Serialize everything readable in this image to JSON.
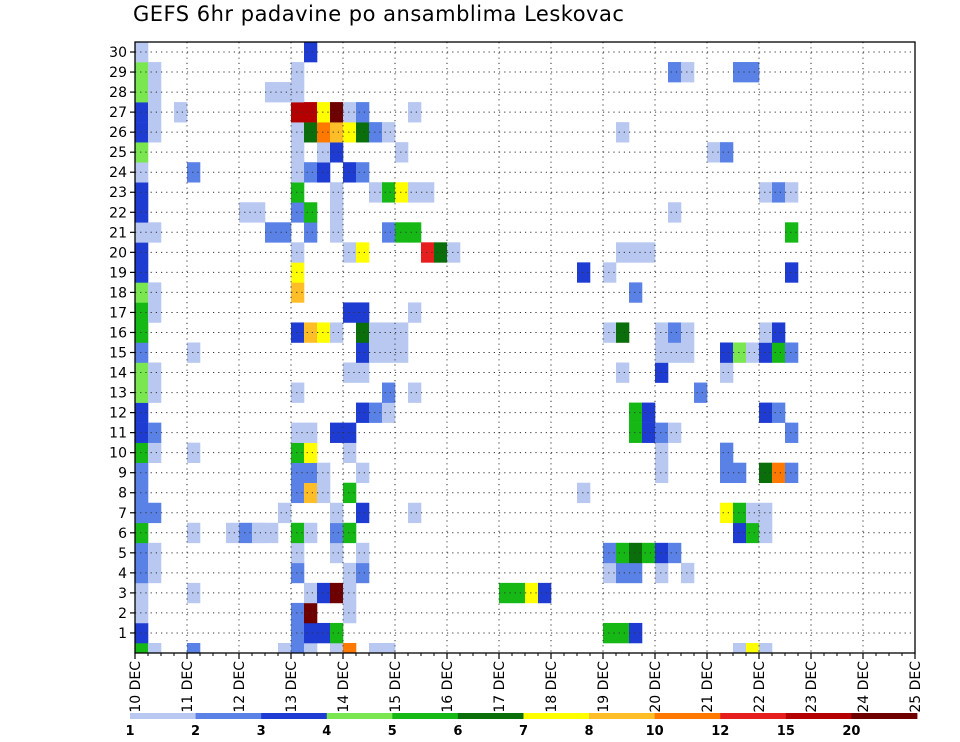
{
  "title": "GEFS 6hr padavine po ansamblima Leskovac",
  "chart_data": {
    "type": "heatmap",
    "title": "GEFS 6hr padavine po ansamblima Leskovac",
    "xlabel": "",
    "ylabel": "",
    "x_ticks": [
      "10 DEC",
      "11 DEC",
      "12 DEC",
      "13 DEC",
      "14 DEC",
      "15 DEC",
      "16 DEC",
      "17 DEC",
      "18 DEC",
      "19 DEC",
      "20 DEC",
      "21 DEC",
      "22 DEC",
      "23 DEC",
      "24 DEC",
      "25 DEC"
    ],
    "y_ticks": [
      "1",
      "2",
      "3",
      "4",
      "5",
      "6",
      "7",
      "8",
      "9",
      "10",
      "11",
      "12",
      "13",
      "14",
      "15",
      "16",
      "17",
      "18",
      "19",
      "20",
      "21",
      "22",
      "23",
      "24",
      "25",
      "26",
      "27",
      "28",
      "29",
      "30"
    ],
    "x_range_days": [
      0,
      15
    ],
    "y_range": [
      0,
      30
    ],
    "step": "6hr",
    "grid": "dotted",
    "colorbar": {
      "boundaries": [
        "1",
        "2",
        "3",
        "4",
        "5",
        "6",
        "7",
        "8",
        "10",
        "12",
        "15",
        "20"
      ],
      "colors": [
        "#b8c8f0",
        "#5a82e6",
        "#1e3cd2",
        "#7ae650",
        "#16b816",
        "#0a6e0a",
        "#ffff00",
        "#ffbe28",
        "#ff7800",
        "#e61e1e",
        "#b40000",
        "#6e0000"
      ]
    },
    "cells": [
      {
        "x": 0,
        "y": 0,
        "v": 5
      },
      {
        "x": 0,
        "y": 1,
        "v": 3
      },
      {
        "x": 0,
        "y": 2,
        "v": 1
      },
      {
        "x": 0,
        "y": 3,
        "v": 1
      },
      {
        "x": 0,
        "y": 4,
        "v": 2
      },
      {
        "x": 0,
        "y": 5,
        "v": 2
      },
      {
        "x": 0,
        "y": 6,
        "v": 5
      },
      {
        "x": 0,
        "y": 7,
        "v": 2
      },
      {
        "x": 0,
        "y": 8,
        "v": 2
      },
      {
        "x": 0,
        "y": 9,
        "v": 2
      },
      {
        "x": 0,
        "y": 10,
        "v": 5
      },
      {
        "x": 0,
        "y": 11,
        "v": 3
      },
      {
        "x": 0,
        "y": 12,
        "v": 3
      },
      {
        "x": 0,
        "y": 13,
        "v": 4
      },
      {
        "x": 0,
        "y": 14,
        "v": 4
      },
      {
        "x": 0,
        "y": 15,
        "v": 2
      },
      {
        "x": 0,
        "y": 16,
        "v": 5
      },
      {
        "x": 0,
        "y": 17,
        "v": 5
      },
      {
        "x": 0,
        "y": 18,
        "v": 4
      },
      {
        "x": 0,
        "y": 19,
        "v": 3
      },
      {
        "x": 0,
        "y": 20,
        "v": 3
      },
      {
        "x": 0,
        "y": 21,
        "v": 1
      },
      {
        "x": 0,
        "y": 22,
        "v": 3
      },
      {
        "x": 0,
        "y": 23,
        "v": 3
      },
      {
        "x": 0,
        "y": 24,
        "v": 1
      },
      {
        "x": 0,
        "y": 25,
        "v": 4
      },
      {
        "x": 0,
        "y": 26,
        "v": 3
      },
      {
        "x": 0,
        "y": 27,
        "v": 3
      },
      {
        "x": 0,
        "y": 28,
        "v": 4
      },
      {
        "x": 0,
        "y": 29,
        "v": 4
      },
      {
        "x": 0,
        "y": 30,
        "v": 1
      },
      {
        "x": 1,
        "y": 0,
        "v": 1
      },
      {
        "x": 1,
        "y": 4,
        "v": 1
      },
      {
        "x": 1,
        "y": 5,
        "v": 1
      },
      {
        "x": 1,
        "y": 7,
        "v": 2
      },
      {
        "x": 1,
        "y": 10,
        "v": 1
      },
      {
        "x": 1,
        "y": 11,
        "v": 2
      },
      {
        "x": 1,
        "y": 13,
        "v": 1
      },
      {
        "x": 1,
        "y": 14,
        "v": 1
      },
      {
        "x": 1,
        "y": 17,
        "v": 1
      },
      {
        "x": 1,
        "y": 18,
        "v": 1
      },
      {
        "x": 1,
        "y": 21,
        "v": 1
      },
      {
        "x": 1,
        "y": 26,
        "v": 1
      },
      {
        "x": 1,
        "y": 27,
        "v": 1
      },
      {
        "x": 1,
        "y": 28,
        "v": 1
      },
      {
        "x": 1,
        "y": 29,
        "v": 1
      },
      {
        "x": 3,
        "y": 27,
        "v": 1
      },
      {
        "x": 4,
        "y": 0,
        "v": 2
      },
      {
        "x": 4,
        "y": 3,
        "v": 1
      },
      {
        "x": 4,
        "y": 6,
        "v": 1
      },
      {
        "x": 4,
        "y": 10,
        "v": 1
      },
      {
        "x": 4,
        "y": 15,
        "v": 1
      },
      {
        "x": 4,
        "y": 24,
        "v": 2
      },
      {
        "x": 7,
        "y": 6,
        "v": 1
      },
      {
        "x": 8,
        "y": 6,
        "v": 2
      },
      {
        "x": 9,
        "y": 6,
        "v": 1
      },
      {
        "x": 8,
        "y": 22,
        "v": 1
      },
      {
        "x": 9,
        "y": 22,
        "v": 1
      },
      {
        "x": 9,
        "y": 6,
        "v": 1
      },
      {
        "x": 10,
        "y": 6,
        "v": 1
      },
      {
        "x": 10,
        "y": 21,
        "v": 2
      },
      {
        "x": 10,
        "y": 28,
        "v": 1
      },
      {
        "x": 11,
        "y": 0,
        "v": 1
      },
      {
        "x": 11,
        "y": 7,
        "v": 1
      },
      {
        "x": 11,
        "y": 21,
        "v": 2
      },
      {
        "x": 11,
        "y": 28,
        "v": 1
      },
      {
        "x": 12,
        "y": 0,
        "v": 2
      },
      {
        "x": 12,
        "y": 1,
        "v": 2
      },
      {
        "x": 12,
        "y": 2,
        "v": 2
      },
      {
        "x": 12,
        "y": 4,
        "v": 2
      },
      {
        "x": 12,
        "y": 5,
        "v": 1
      },
      {
        "x": 12,
        "y": 6,
        "v": 5
      },
      {
        "x": 12,
        "y": 8,
        "v": 2
      },
      {
        "x": 12,
        "y": 9,
        "v": 2
      },
      {
        "x": 12,
        "y": 10,
        "v": 5
      },
      {
        "x": 12,
        "y": 11,
        "v": 1
      },
      {
        "x": 12,
        "y": 13,
        "v": 1
      },
      {
        "x": 12,
        "y": 16,
        "v": 3
      },
      {
        "x": 12,
        "y": 18,
        "v": 8
      },
      {
        "x": 12,
        "y": 19,
        "v": 7
      },
      {
        "x": 12,
        "y": 20,
        "v": 1
      },
      {
        "x": 12,
        "y": 22,
        "v": 2
      },
      {
        "x": 12,
        "y": 23,
        "v": 5
      },
      {
        "x": 12,
        "y": 24,
        "v": 1
      },
      {
        "x": 12,
        "y": 25,
        "v": 1
      },
      {
        "x": 12,
        "y": 26,
        "v": 1
      },
      {
        "x": 12,
        "y": 27,
        "v": 11
      },
      {
        "x": 12,
        "y": 28,
        "v": 1
      },
      {
        "x": 12,
        "y": 29,
        "v": 1
      },
      {
        "x": 13,
        "y": 0,
        "v": 1
      },
      {
        "x": 13,
        "y": 1,
        "v": 3
      },
      {
        "x": 13,
        "y": 2,
        "v": 12
      },
      {
        "x": 13,
        "y": 3,
        "v": 1
      },
      {
        "x": 13,
        "y": 6,
        "v": 1
      },
      {
        "x": 13,
        "y": 8,
        "v": 8
      },
      {
        "x": 13,
        "y": 9,
        "v": 2
      },
      {
        "x": 13,
        "y": 10,
        "v": 7
      },
      {
        "x": 13,
        "y": 11,
        "v": 1
      },
      {
        "x": 13,
        "y": 16,
        "v": 8
      },
      {
        "x": 13,
        "y": 21,
        "v": 2
      },
      {
        "x": 13,
        "y": 22,
        "v": 5
      },
      {
        "x": 13,
        "y": 24,
        "v": 2
      },
      {
        "x": 13,
        "y": 26,
        "v": 6
      },
      {
        "x": 13,
        "y": 27,
        "v": 11
      },
      {
        "x": 13,
        "y": 30,
        "v": 3
      },
      {
        "x": 14,
        "y": 1,
        "v": 3
      },
      {
        "x": 14,
        "y": 3,
        "v": 3
      },
      {
        "x": 14,
        "y": 8,
        "v": 1
      },
      {
        "x": 14,
        "y": 9,
        "v": 1
      },
      {
        "x": 14,
        "y": 16,
        "v": 7
      },
      {
        "x": 14,
        "y": 24,
        "v": 3
      },
      {
        "x": 14,
        "y": 25,
        "v": 1
      },
      {
        "x": 14,
        "y": 26,
        "v": 9
      },
      {
        "x": 14,
        "y": 27,
        "v": 7
      },
      {
        "x": 15,
        "y": 0,
        "v": 1
      },
      {
        "x": 15,
        "y": 1,
        "v": 5
      },
      {
        "x": 15,
        "y": 3,
        "v": 12
      },
      {
        "x": 15,
        "y": 5,
        "v": 1
      },
      {
        "x": 15,
        "y": 6,
        "v": 2
      },
      {
        "x": 15,
        "y": 7,
        "v": 1
      },
      {
        "x": 15,
        "y": 11,
        "v": 3
      },
      {
        "x": 15,
        "y": 16,
        "v": 1
      },
      {
        "x": 15,
        "y": 25,
        "v": 3
      },
      {
        "x": 15,
        "y": 26,
        "v": 8
      },
      {
        "x": 15,
        "y": 27,
        "v": 12
      },
      {
        "x": 15,
        "y": 21,
        "v": 1
      },
      {
        "x": 15,
        "y": 22,
        "v": 1
      },
      {
        "x": 15,
        "y": 23,
        "v": 1
      },
      {
        "x": 16,
        "y": 0,
        "v": 9
      },
      {
        "x": 16,
        "y": 2,
        "v": 1
      },
      {
        "x": 16,
        "y": 3,
        "v": 1
      },
      {
        "x": 16,
        "y": 4,
        "v": 1
      },
      {
        "x": 16,
        "y": 6,
        "v": 5
      },
      {
        "x": 16,
        "y": 8,
        "v": 5
      },
      {
        "x": 16,
        "y": 10,
        "v": 1
      },
      {
        "x": 16,
        "y": 11,
        "v": 3
      },
      {
        "x": 16,
        "y": 14,
        "v": 1
      },
      {
        "x": 16,
        "y": 17,
        "v": 3
      },
      {
        "x": 16,
        "y": 20,
        "v": 1
      },
      {
        "x": 16,
        "y": 24,
        "v": 3
      },
      {
        "x": 16,
        "y": 26,
        "v": 7
      },
      {
        "x": 16,
        "y": 27,
        "v": 1
      },
      {
        "x": 17,
        "y": 4,
        "v": 2
      },
      {
        "x": 17,
        "y": 5,
        "v": 1
      },
      {
        "x": 17,
        "y": 7,
        "v": 3
      },
      {
        "x": 17,
        "y": 9,
        "v": 1
      },
      {
        "x": 17,
        "y": 12,
        "v": 3
      },
      {
        "x": 17,
        "y": 14,
        "v": 1
      },
      {
        "x": 17,
        "y": 15,
        "v": 3
      },
      {
        "x": 17,
        "y": 16,
        "v": 6
      },
      {
        "x": 17,
        "y": 17,
        "v": 3
      },
      {
        "x": 17,
        "y": 20,
        "v": 7
      },
      {
        "x": 17,
        "y": 24,
        "v": 2
      },
      {
        "x": 17,
        "y": 26,
        "v": 6
      },
      {
        "x": 17,
        "y": 27,
        "v": 2
      },
      {
        "x": 18,
        "y": 0,
        "v": 1
      },
      {
        "x": 18,
        "y": 12,
        "v": 2
      },
      {
        "x": 18,
        "y": 15,
        "v": 1
      },
      {
        "x": 18,
        "y": 16,
        "v": 1
      },
      {
        "x": 18,
        "y": 23,
        "v": 1
      },
      {
        "x": 18,
        "y": 26,
        "v": 2
      },
      {
        "x": 19,
        "y": 0,
        "v": 1
      },
      {
        "x": 19,
        "y": 12,
        "v": 1
      },
      {
        "x": 19,
        "y": 13,
        "v": 2
      },
      {
        "x": 19,
        "y": 15,
        "v": 1
      },
      {
        "x": 19,
        "y": 16,
        "v": 1
      },
      {
        "x": 19,
        "y": 21,
        "v": 2
      },
      {
        "x": 19,
        "y": 23,
        "v": 5
      },
      {
        "x": 19,
        "y": 26,
        "v": 1
      },
      {
        "x": 20,
        "y": 15,
        "v": 1
      },
      {
        "x": 20,
        "y": 16,
        "v": 1
      },
      {
        "x": 20,
        "y": 21,
        "v": 5
      },
      {
        "x": 20,
        "y": 23,
        "v": 7
      },
      {
        "x": 20,
        "y": 25,
        "v": 1
      },
      {
        "x": 21,
        "y": 7,
        "v": 1
      },
      {
        "x": 21,
        "y": 13,
        "v": 1
      },
      {
        "x": 21,
        "y": 17,
        "v": 1
      },
      {
        "x": 21,
        "y": 21,
        "v": 5
      },
      {
        "x": 21,
        "y": 23,
        "v": 1
      },
      {
        "x": 21,
        "y": 27,
        "v": 1
      },
      {
        "x": 22,
        "y": 20,
        "v": 10
      },
      {
        "x": 22,
        "y": 23,
        "v": 1
      },
      {
        "x": 23,
        "y": 20,
        "v": 6
      },
      {
        "x": 24,
        "y": 20,
        "v": 1
      },
      {
        "x": 28,
        "y": 3,
        "v": 5
      },
      {
        "x": 29,
        "y": 3,
        "v": 5
      },
      {
        "x": 30,
        "y": 3,
        "v": 7
      },
      {
        "x": 31,
        "y": 3,
        "v": 3
      },
      {
        "x": 34,
        "y": 8,
        "v": 1
      },
      {
        "x": 34,
        "y": 19,
        "v": 3
      },
      {
        "x": 36,
        "y": 1,
        "v": 5
      },
      {
        "x": 36,
        "y": 4,
        "v": 1
      },
      {
        "x": 36,
        "y": 5,
        "v": 2
      },
      {
        "x": 36,
        "y": 16,
        "v": 1
      },
      {
        "x": 36,
        "y": 19,
        "v": 1
      },
      {
        "x": 37,
        "y": 1,
        "v": 5
      },
      {
        "x": 37,
        "y": 4,
        "v": 2
      },
      {
        "x": 37,
        "y": 5,
        "v": 5
      },
      {
        "x": 37,
        "y": 14,
        "v": 1
      },
      {
        "x": 37,
        "y": 16,
        "v": 6
      },
      {
        "x": 37,
        "y": 20,
        "v": 1
      },
      {
        "x": 37,
        "y": 26,
        "v": 1
      },
      {
        "x": 38,
        "y": 1,
        "v": 3
      },
      {
        "x": 38,
        "y": 4,
        "v": 2
      },
      {
        "x": 38,
        "y": 5,
        "v": 6
      },
      {
        "x": 38,
        "y": 11,
        "v": 5
      },
      {
        "x": 38,
        "y": 12,
        "v": 5
      },
      {
        "x": 38,
        "y": 18,
        "v": 2
      },
      {
        "x": 38,
        "y": 20,
        "v": 1
      },
      {
        "x": 39,
        "y": 5,
        "v": 5
      },
      {
        "x": 39,
        "y": 11,
        "v": 3
      },
      {
        "x": 39,
        "y": 12,
        "v": 3
      },
      {
        "x": 39,
        "y": 20,
        "v": 1
      },
      {
        "x": 40,
        "y": 4,
        "v": 1
      },
      {
        "x": 40,
        "y": 5,
        "v": 3
      },
      {
        "x": 40,
        "y": 9,
        "v": 1
      },
      {
        "x": 40,
        "y": 10,
        "v": 1
      },
      {
        "x": 40,
        "y": 11,
        "v": 2
      },
      {
        "x": 40,
        "y": 14,
        "v": 3
      },
      {
        "x": 40,
        "y": 15,
        "v": 1
      },
      {
        "x": 40,
        "y": 16,
        "v": 1
      },
      {
        "x": 41,
        "y": 5,
        "v": 2
      },
      {
        "x": 41,
        "y": 11,
        "v": 1
      },
      {
        "x": 41,
        "y": 15,
        "v": 1
      },
      {
        "x": 41,
        "y": 16,
        "v": 2
      },
      {
        "x": 41,
        "y": 22,
        "v": 1
      },
      {
        "x": 41,
        "y": 29,
        "v": 2
      },
      {
        "x": 42,
        "y": 4,
        "v": 1
      },
      {
        "x": 42,
        "y": 15,
        "v": 1
      },
      {
        "x": 42,
        "y": 16,
        "v": 1
      },
      {
        "x": 42,
        "y": 29,
        "v": 1
      },
      {
        "x": 43,
        "y": 13,
        "v": 2
      },
      {
        "x": 44,
        "y": 25,
        "v": 1
      },
      {
        "x": 45,
        "y": 7,
        "v": 7
      },
      {
        "x": 45,
        "y": 9,
        "v": 2
      },
      {
        "x": 45,
        "y": 10,
        "v": 2
      },
      {
        "x": 45,
        "y": 14,
        "v": 1
      },
      {
        "x": 45,
        "y": 15,
        "v": 3
      },
      {
        "x": 45,
        "y": 25,
        "v": 2
      },
      {
        "x": 46,
        "y": 0,
        "v": 1
      },
      {
        "x": 46,
        "y": 6,
        "v": 3
      },
      {
        "x": 46,
        "y": 7,
        "v": 5
      },
      {
        "x": 46,
        "y": 9,
        "v": 2
      },
      {
        "x": 46,
        "y": 15,
        "v": 4
      },
      {
        "x": 46,
        "y": 29,
        "v": 2
      },
      {
        "x": 47,
        "y": 0,
        "v": 7
      },
      {
        "x": 47,
        "y": 6,
        "v": 5
      },
      {
        "x": 47,
        "y": 7,
        "v": 1
      },
      {
        "x": 47,
        "y": 15,
        "v": 1
      },
      {
        "x": 47,
        "y": 29,
        "v": 2
      },
      {
        "x": 48,
        "y": 0,
        "v": 1
      },
      {
        "x": 48,
        "y": 6,
        "v": 1
      },
      {
        "x": 48,
        "y": 7,
        "v": 1
      },
      {
        "x": 48,
        "y": 9,
        "v": 6
      },
      {
        "x": 48,
        "y": 12,
        "v": 3
      },
      {
        "x": 48,
        "y": 15,
        "v": 3
      },
      {
        "x": 48,
        "y": 16,
        "v": 1
      },
      {
        "x": 48,
        "y": 23,
        "v": 1
      },
      {
        "x": 49,
        "y": 9,
        "v": 9
      },
      {
        "x": 49,
        "y": 12,
        "v": 2
      },
      {
        "x": 49,
        "y": 15,
        "v": 5
      },
      {
        "x": 49,
        "y": 16,
        "v": 3
      },
      {
        "x": 49,
        "y": 23,
        "v": 2
      },
      {
        "x": 50,
        "y": 9,
        "v": 2
      },
      {
        "x": 50,
        "y": 11,
        "v": 2
      },
      {
        "x": 50,
        "y": 15,
        "v": 2
      },
      {
        "x": 50,
        "y": 19,
        "v": 3
      },
      {
        "x": 50,
        "y": 21,
        "v": 5
      },
      {
        "x": 50,
        "y": 23,
        "v": 1
      }
    ]
  }
}
